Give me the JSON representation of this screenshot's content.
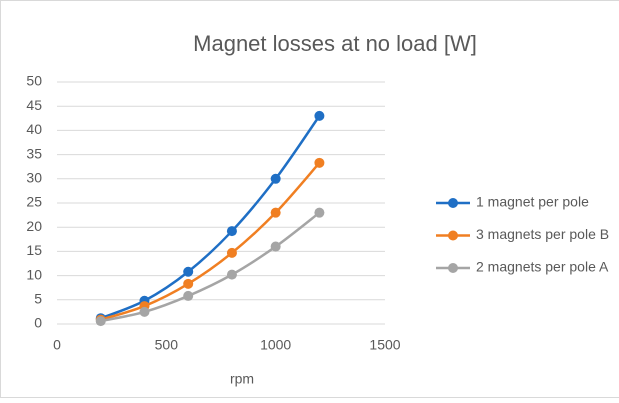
{
  "chart_data": {
    "type": "line",
    "title": "Magnet losses at no load [W]",
    "x_label": "rpm",
    "x": [
      200,
      400,
      600,
      800,
      1000,
      1200
    ],
    "series": [
      {
        "name": "1 magnet per pole",
        "color": "#1f6fc5",
        "values": [
          1.2,
          4.8,
          10.8,
          19.2,
          30,
          43
        ]
      },
      {
        "name": "3 magnets per pole B",
        "color": "#f07f22",
        "values": [
          0.9,
          3.7,
          8.3,
          14.7,
          23,
          33.3
        ]
      },
      {
        "name": "2 magnets per pole A",
        "color": "#a5a5a5",
        "values": [
          0.6,
          2.5,
          5.8,
          10.2,
          16,
          23
        ]
      }
    ],
    "xlim": [
      0,
      1500
    ],
    "xticks": [
      0,
      500,
      1000,
      1500
    ],
    "ylim": [
      0,
      50
    ],
    "yticks": [
      0,
      5,
      10,
      15,
      20,
      25,
      30,
      35,
      40,
      45,
      50
    ],
    "grid": true,
    "legend": "right",
    "smooth": true
  }
}
